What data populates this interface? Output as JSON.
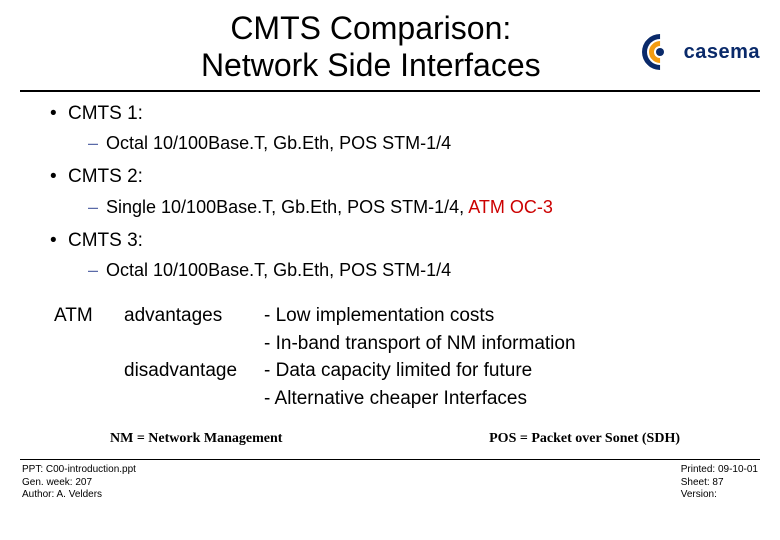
{
  "title_line1": "CMTS Comparison:",
  "title_line2": "Network Side Interfaces",
  "logo_text": "casema",
  "logo_colors": {
    "primary": "#0a2a6a",
    "accent": "#f39c12"
  },
  "items": [
    {
      "label": "CMTS 1:",
      "detail_prefix": "Octal 10/100Base.T, Gb.Eth, POS STM-1/4",
      "detail_red": ""
    },
    {
      "label": "CMTS 2:",
      "detail_prefix": "Single 10/100Base.T, Gb.Eth, POS STM-1/4, ",
      "detail_red": "ATM OC-3"
    },
    {
      "label": "CMTS 3:",
      "detail_prefix": "Octal 10/100Base.T, Gb.Eth, POS STM-1/4",
      "detail_red": ""
    }
  ],
  "atm": {
    "heading": "ATM",
    "rows": [
      {
        "label": "advantages",
        "text": "- Low implementation costs"
      },
      {
        "label": "",
        "text": "- In-band transport of NM information"
      },
      {
        "label": "disadvantage",
        "text": "- Data capacity limited for future"
      },
      {
        "label": "",
        "text": "- Alternative cheaper Interfaces"
      }
    ]
  },
  "footnote_left": "NM = Network Management",
  "footnote_right": "POS = Packet over Sonet (SDH)",
  "footer_left": {
    "l1": "PPT: C00-introduction.ppt",
    "l2": "Gen. week: 207",
    "l3": "Author: A. Velders"
  },
  "footer_right": {
    "l1": "Printed: 09-10-01",
    "l2": "Sheet: 87",
    "l3": "Version:"
  }
}
